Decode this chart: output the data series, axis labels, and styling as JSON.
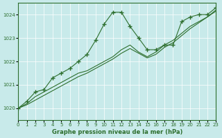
{
  "title": "Graphe pression niveau de la mer (hPa)",
  "background_color": "#c8eaea",
  "plot_bg_color": "#c8eaea",
  "grid_color": "#ffffff",
  "line_color": "#2d6e2d",
  "x_min": 0,
  "x_max": 23,
  "y_min": 1019.5,
  "y_max": 1024.5,
  "yticks": [
    1020,
    1021,
    1022,
    1023,
    1024
  ],
  "xticks": [
    0,
    1,
    2,
    3,
    4,
    5,
    6,
    7,
    8,
    9,
    10,
    11,
    12,
    13,
    14,
    15,
    16,
    17,
    18,
    19,
    20,
    21,
    22,
    23
  ],
  "series1": {
    "x": [
      0,
      1,
      2,
      3,
      4,
      5,
      6,
      7,
      8,
      9,
      10,
      11,
      12,
      13,
      14,
      15,
      16,
      17,
      18,
      19,
      20,
      21,
      22,
      23
    ],
    "y": [
      1020.0,
      1020.3,
      1020.7,
      1020.8,
      1021.3,
      1021.5,
      1021.7,
      1022.0,
      1022.3,
      1022.9,
      1023.6,
      1024.1,
      1024.1,
      1023.5,
      1023.0,
      1022.5,
      1022.5,
      1022.7,
      1022.7,
      1023.7,
      1023.9,
      1024.0,
      1024.0,
      1024.3
    ]
  },
  "series2": {
    "x": [
      0,
      1,
      2,
      3,
      4,
      5,
      6,
      7,
      8,
      9,
      10,
      11,
      12,
      13,
      14,
      15,
      16,
      17,
      18,
      19,
      20,
      21,
      22,
      23
    ],
    "y": [
      1020.0,
      1020.2,
      1020.5,
      1020.7,
      1020.9,
      1021.1,
      1021.3,
      1021.5,
      1021.6,
      1021.8,
      1022.0,
      1022.2,
      1022.5,
      1022.7,
      1022.4,
      1022.2,
      1022.4,
      1022.7,
      1022.9,
      1023.2,
      1023.5,
      1023.7,
      1023.9,
      1024.2
    ]
  },
  "series3": {
    "x": [
      0,
      1,
      2,
      3,
      4,
      5,
      6,
      7,
      8,
      9,
      10,
      11,
      12,
      13,
      14,
      15,
      16,
      17,
      18,
      19,
      20,
      21,
      22,
      23
    ],
    "y": [
      1020.0,
      1020.15,
      1020.35,
      1020.55,
      1020.75,
      1020.95,
      1021.15,
      1021.35,
      1021.5,
      1021.7,
      1021.9,
      1022.1,
      1022.35,
      1022.55,
      1022.35,
      1022.15,
      1022.3,
      1022.6,
      1022.8,
      1023.1,
      1023.4,
      1023.65,
      1023.9,
      1024.15
    ]
  }
}
